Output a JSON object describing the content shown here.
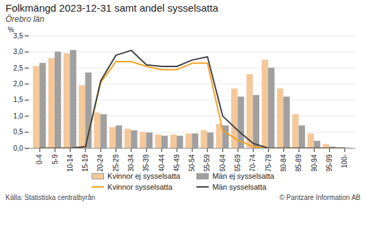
{
  "chart_data": {
    "type": "bar",
    "title": "Folkmängd 2023-12-31 samt andel sysselsatta",
    "subtitle": "Örebro län",
    "ylabel": "%",
    "annotations": [
      "Källa: Statistiska centralbyrån",
      "© Pantzare Information AB"
    ],
    "categories": [
      "0-4",
      "5-9",
      "10-14",
      "15-19",
      "20-24",
      "25-29",
      "30-34",
      "35-39",
      "40-44",
      "45-49",
      "50-54",
      "55-59",
      "60-64",
      "65-69",
      "70-74",
      "75-79",
      "80-84",
      "85-89",
      "90-94",
      "95-99",
      "100-"
    ],
    "series": [
      {
        "name": "Kvinnor ej sysselsatta",
        "type": "bar",
        "color": "#f5c89a",
        "values": [
          2.55,
          2.8,
          2.95,
          1.95,
          1.1,
          0.65,
          0.6,
          0.5,
          0.42,
          0.42,
          0.45,
          0.55,
          0.75,
          1.85,
          2.3,
          2.75,
          1.85,
          1.05,
          0.45,
          0.12,
          0.02
        ]
      },
      {
        "name": "Män ej sysselsatta",
        "type": "bar",
        "color": "#a0a0a0",
        "values": [
          2.65,
          3.0,
          3.05,
          2.35,
          1.05,
          0.7,
          0.55,
          0.48,
          0.38,
          0.38,
          0.45,
          0.48,
          0.7,
          1.6,
          1.65,
          2.5,
          1.6,
          0.7,
          0.22,
          0.04,
          0.01
        ]
      },
      {
        "name": "Kvinnor sysselsatta",
        "type": "line",
        "color": "#f5a020",
        "values": [
          0.0,
          0.0,
          0.0,
          0.05,
          2.05,
          2.7,
          2.7,
          2.55,
          2.45,
          2.45,
          2.65,
          2.65,
          0.55,
          0.25,
          0.05,
          0.0,
          0.0,
          0.0,
          0.0,
          0.0,
          0.0
        ]
      },
      {
        "name": "Män sysselsatta",
        "type": "line",
        "color": "#404040",
        "values": [
          0.0,
          0.0,
          0.0,
          0.05,
          2.1,
          2.9,
          3.05,
          2.6,
          2.55,
          2.55,
          2.75,
          2.85,
          1.0,
          0.55,
          0.15,
          0.0,
          0.0,
          0.0,
          0.0,
          0.0,
          0.0
        ]
      }
    ],
    "ylim": [
      0,
      3.5
    ],
    "yticks": [
      {
        "value": 0.0,
        "label": "0,0"
      },
      {
        "value": 0.5,
        "label": "0,5"
      },
      {
        "value": 1.0,
        "label": "1,0"
      },
      {
        "value": 1.5,
        "label": "1,5"
      },
      {
        "value": 2.0,
        "label": "2,0"
      },
      {
        "value": 2.5,
        "label": "2,5"
      },
      {
        "value": 3.0,
        "label": "3,0"
      },
      {
        "value": 3.5,
        "label": "3,5"
      }
    ],
    "grid": true,
    "legend": "bottom"
  }
}
